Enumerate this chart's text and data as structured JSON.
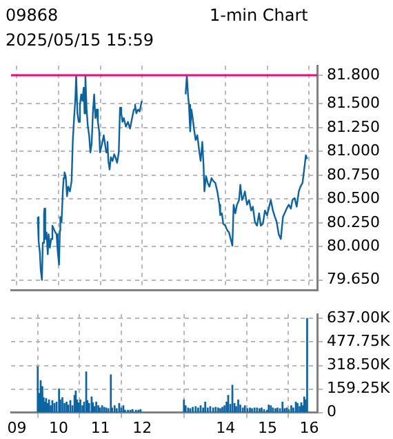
{
  "chart_data": [
    {
      "type": "line",
      "title": "09868",
      "subtitle": "1-min Chart",
      "annotations": [
        "2025/05/15 15:59"
      ],
      "x": [
        9.5,
        9.52,
        9.55,
        9.57,
        9.6,
        9.62,
        9.65,
        9.66,
        9.68,
        9.71,
        9.74,
        9.76,
        9.79,
        9.82,
        9.85,
        9.88,
        9.92,
        9.95,
        9.98,
        10.01,
        10.03,
        10.04,
        10.07,
        10.1,
        10.12,
        10.14,
        10.17,
        10.2,
        10.23,
        10.27,
        10.31,
        10.34,
        10.37,
        10.4,
        10.42,
        10.45,
        10.48,
        10.51,
        10.54,
        10.57,
        10.6,
        10.62,
        10.64,
        10.67,
        10.7,
        10.73,
        10.76,
        10.79,
        10.82,
        10.85,
        10.88,
        10.91,
        10.94,
        10.97,
        10.99,
        11.04,
        11.08,
        11.11,
        11.14,
        11.17,
        11.19,
        11.22,
        11.25,
        11.29,
        11.33,
        11.36,
        11.4,
        11.44,
        11.47,
        11.5,
        11.53,
        11.56,
        11.61,
        11.66,
        11.71,
        11.75,
        11.8,
        11.83,
        11.86,
        11.9,
        11.94,
        11.99,
        12.5,
        13.04,
        13.07,
        13.1,
        13.12,
        13.15,
        13.18,
        13.21,
        13.24,
        13.28,
        13.32,
        13.37,
        13.4,
        13.44,
        13.47,
        13.49,
        13.53,
        13.57,
        13.61,
        13.66,
        13.7,
        13.75,
        13.8,
        13.85,
        13.87,
        13.91,
        13.94,
        13.99,
        14.04,
        14.08,
        14.13,
        14.16,
        14.19,
        14.23,
        14.27,
        14.32,
        14.35,
        14.39,
        14.43,
        14.46,
        14.51,
        14.56,
        14.61,
        14.65,
        14.7,
        14.75,
        14.8,
        14.84,
        14.89,
        14.94,
        14.99,
        15.03,
        15.08,
        15.13,
        15.18,
        15.22,
        15.27,
        15.32,
        15.37,
        15.41,
        15.46,
        15.51,
        15.56,
        15.6,
        15.65,
        15.7,
        15.75,
        15.79,
        15.84,
        15.89,
        15.92,
        15.95
      ],
      "series": [
        {
          "color": "#0a64a4",
          "values": [
            80.31,
            80.06,
            79.94,
            79.76,
            79.65,
            80.04,
            80.35,
            80.4,
            80.08,
            80.15,
            79.92,
            80.13,
            79.99,
            80.08,
            80.22,
            80.19,
            80.15,
            80.13,
            79.94,
            79.81,
            80.17,
            80.31,
            80.26,
            80.58,
            80.72,
            80.78,
            80.74,
            80.53,
            80.63,
            80.58,
            80.69,
            81.12,
            81.35,
            81.55,
            81.8,
            81.4,
            81.31,
            81.49,
            81.6,
            81.53,
            81.67,
            81.4,
            81.8,
            81.44,
            81.26,
            81.17,
            80.99,
            81.08,
            81.4,
            81.6,
            81.35,
            81.44,
            81.31,
            81.21,
            80.99,
            81.08,
            81.17,
            81.08,
            80.99,
            81.1,
            80.9,
            80.81,
            80.94,
            80.9,
            80.97,
            80.94,
            80.88,
            80.99,
            81.46,
            81.4,
            81.31,
            81.35,
            81.26,
            81.31,
            81.24,
            81.33,
            81.44,
            81.49,
            81.4,
            81.44,
            81.42,
            81.53,
            null,
            81.6,
            81.8,
            81.58,
            81.49,
            81.21,
            81.44,
            81.35,
            81.24,
            81.12,
            81.17,
            80.99,
            80.9,
            81.1,
            80.85,
            80.58,
            80.74,
            80.67,
            80.63,
            80.72,
            80.69,
            80.67,
            80.58,
            80.44,
            80.33,
            80.35,
            80.24,
            80.22,
            80.17,
            80.15,
            80.06,
            80.01,
            80.44,
            80.35,
            80.44,
            80.49,
            80.65,
            80.49,
            80.53,
            80.58,
            80.44,
            80.49,
            80.38,
            80.42,
            80.26,
            80.22,
            80.35,
            80.22,
            80.24,
            80.38,
            80.33,
            80.4,
            80.49,
            80.38,
            80.31,
            80.26,
            80.13,
            80.08,
            80.31,
            80.35,
            80.4,
            80.44,
            80.4,
            80.49,
            80.51,
            80.42,
            80.58,
            80.63,
            80.67,
            80.85,
            80.96,
            80.92
          ]
        }
      ],
      "xlim": [
        8.86,
        16.19
      ],
      "xticks": [
        9,
        10,
        11,
        12,
        14,
        15,
        16
      ],
      "ylim": [
        79.54,
        81.9
      ],
      "yticks": [
        {
          "value": 79.65,
          "label": "79.650"
        },
        {
          "value": 80,
          "label": "80.000"
        },
        {
          "value": 80.25,
          "label": "80.250"
        },
        {
          "value": 80.5,
          "label": "80.500"
        },
        {
          "value": 80.75,
          "label": "80.750"
        },
        {
          "value": 81,
          "label": "81.000"
        },
        {
          "value": 81.25,
          "label": "81.250"
        },
        {
          "value": 81.5,
          "label": "81.500"
        },
        {
          "value": 81.8,
          "label": "81.800"
        }
      ],
      "ref_lines": [
        {
          "axis": "y",
          "value": 81.8,
          "color": "#ff0080"
        }
      ],
      "grid": true,
      "marker": "none",
      "tick_labels": "y"
    },
    {
      "type": "bar",
      "x": [
        9.5,
        9.54,
        9.57,
        9.61,
        9.64,
        9.67,
        9.7,
        9.73,
        9.77,
        9.81,
        9.85,
        9.9,
        9.95,
        10.01,
        10.04,
        10.09,
        10.14,
        10.19,
        10.23,
        10.28,
        10.33,
        10.38,
        10.41,
        10.44,
        10.48,
        10.52,
        10.57,
        10.61,
        10.66,
        10.69,
        10.73,
        10.79,
        10.82,
        10.86,
        10.9,
        10.95,
        10.99,
        11.04,
        11.09,
        11.14,
        11.19,
        11.25,
        11.28,
        11.34,
        11.39,
        11.45,
        11.5,
        11.55,
        11.59,
        11.66,
        11.72,
        11.77,
        11.85,
        11.91,
        11.96,
        13.0,
        13.04,
        13.1,
        13.15,
        13.21,
        13.28,
        13.34,
        13.4,
        13.46,
        13.51,
        13.57,
        13.63,
        13.7,
        13.76,
        13.82,
        13.87,
        13.92,
        13.97,
        14.02,
        14.06,
        14.11,
        14.16,
        14.21,
        14.25,
        14.3,
        14.35,
        14.41,
        14.46,
        14.52,
        14.58,
        14.63,
        14.69,
        14.75,
        14.81,
        14.86,
        14.92,
        14.99,
        15.03,
        15.08,
        15.13,
        15.19,
        15.24,
        15.3,
        15.36,
        15.41,
        15.46,
        15.51,
        15.57,
        15.62,
        15.68,
        15.72,
        15.77,
        15.81,
        15.85,
        15.88,
        15.91,
        15.95
      ],
      "series": [
        {
          "color": "#0a64a4",
          "values": [
            310,
            130,
            215,
            175,
            100,
            70,
            95,
            60,
            85,
            45,
            80,
            60,
            70,
            160,
            85,
            100,
            60,
            70,
            50,
            80,
            45,
            115,
            145,
            85,
            65,
            85,
            45,
            70,
            275,
            80,
            60,
            105,
            65,
            40,
            70,
            45,
            30,
            45,
            35,
            30,
            25,
            255,
            30,
            45,
            25,
            60,
            30,
            45,
            15,
            15,
            15,
            20,
            15,
            15,
            20,
            85,
            45,
            30,
            25,
            35,
            40,
            30,
            45,
            30,
            70,
            30,
            40,
            30,
            35,
            30,
            25,
            35,
            45,
            70,
            115,
            55,
            185,
            60,
            40,
            85,
            50,
            30,
            45,
            25,
            30,
            25,
            30,
            30,
            25,
            30,
            20,
            15,
            50,
            45,
            30,
            25,
            30,
            25,
            70,
            25,
            30,
            20,
            45,
            30,
            70,
            60,
            40,
            65,
            45,
            105,
            85,
            637
          ]
        }
      ],
      "xlim": [
        8.86,
        16.19
      ],
      "xticks": [
        {
          "value": 9,
          "label": "09"
        },
        10,
        11,
        12,
        14,
        15,
        16
      ],
      "ylim": [
        0,
        666
      ],
      "yticks": [
        0,
        {
          "value": 159.25,
          "label": "159.25K"
        },
        {
          "value": 318.5,
          "label": "318.50K"
        },
        {
          "value": 477.75,
          "label": "477.75K"
        },
        {
          "value": 637,
          "label": "637.00K"
        }
      ],
      "grid": true
    }
  ]
}
